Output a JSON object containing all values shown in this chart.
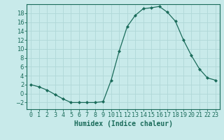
{
  "x": [
    0,
    1,
    2,
    3,
    4,
    5,
    6,
    7,
    8,
    9,
    10,
    11,
    12,
    13,
    14,
    15,
    16,
    17,
    18,
    19,
    20,
    21,
    22,
    23
  ],
  "y": [
    2,
    1.5,
    0.8,
    -0.2,
    -1.2,
    -2,
    -2,
    -2,
    -2,
    -1.8,
    3,
    9.5,
    15,
    17.5,
    19,
    19.2,
    19.5,
    18.2,
    16.2,
    12,
    8.5,
    5.5,
    3.5,
    3
  ],
  "line_color": "#1a6b5a",
  "marker": "D",
  "marker_size": 2,
  "bg_color": "#c8eaea",
  "grid_color": "#b0d8d8",
  "xlabel": "Humidex (Indice chaleur)",
  "xlim": [
    -0.5,
    23.5
  ],
  "ylim": [
    -3.5,
    20
  ],
  "yticks": [
    -2,
    0,
    2,
    4,
    6,
    8,
    10,
    12,
    14,
    16,
    18
  ],
  "tick_color": "#1a6b5a",
  "label_fontsize": 7,
  "tick_fontsize": 6
}
